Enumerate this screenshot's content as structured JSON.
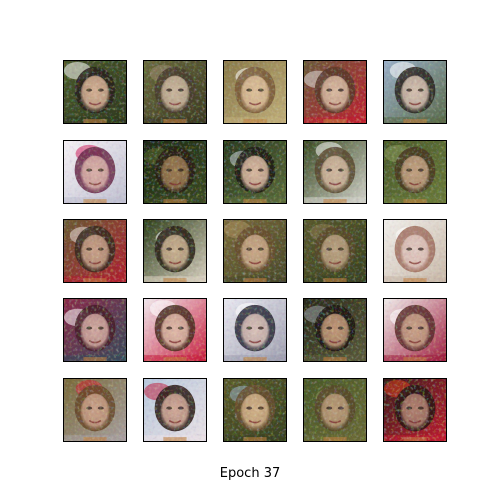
{
  "figure": {
    "caption": "Epoch 37"
  },
  "samples": [
    {
      "bg": "#4b5a2a",
      "bg2": "#2f3a1e",
      "face": "#d4b094",
      "hair": "#2a221c",
      "accent": "#ffffff"
    },
    {
      "bg": "#6a6a3c",
      "bg2": "#3d3a22",
      "face": "#c9b59c",
      "hair": "#4a3e2e",
      "accent": "#9a8a70"
    },
    {
      "bg": "#8a7a4a",
      "bg2": "#bfae7a",
      "face": "#dcbf9a",
      "hair": "#7a5a3a",
      "accent": "#ffffff"
    },
    {
      "bg": "#6a5a3a",
      "bg2": "#c02030",
      "face": "#d8b8a0",
      "hair": "#5a3a2a",
      "accent": "#e0e0e0"
    },
    {
      "bg": "#9ab0c8",
      "bg2": "#5a6a4a",
      "face": "#d4c0b0",
      "hair": "#2a2420",
      "accent": "#ffffff"
    },
    {
      "bg": "#f4f0f4",
      "bg2": "#c0c0d0",
      "face": "#d8b0a8",
      "hair": "#6a2a4a",
      "accent": "#d02060"
    },
    {
      "bg": "#1e2a12",
      "bg2": "#3a4a22",
      "face": "#9a7a52",
      "hair": "#2a1e12",
      "accent": "#5a6a32"
    },
    {
      "bg": "#2a3a1e",
      "bg2": "#5a6a3a",
      "face": "#d8b8a0",
      "hair": "#1e1a14",
      "accent": "#c8d0d8"
    },
    {
      "bg": "#3a4a22",
      "bg2": "#d0d0c8",
      "face": "#d0b8a0",
      "hair": "#5a4a30",
      "accent": "#ffffff"
    },
    {
      "bg": "#4a5a2a",
      "bg2": "#6a7a3a",
      "face": "#c0a080",
      "hair": "#4a3a22",
      "accent": "#8a9a5a"
    },
    {
      "bg": "#6a5a32",
      "bg2": "#b02030",
      "face": "#c8a088",
      "hair": "#3a2a1e",
      "accent": "#e8e0e0"
    },
    {
      "bg": "#2e3e1a",
      "bg2": "#d8d0c0",
      "face": "#c8b090",
      "hair": "#2a2218",
      "accent": "#ffffff"
    },
    {
      "bg": "#7a6a3a",
      "bg2": "#4a4a2a",
      "face": "#c8a888",
      "hair": "#6a5030",
      "accent": "#aa9060"
    },
    {
      "bg": "#5a5a2e",
      "bg2": "#3a4220",
      "face": "#b8a080",
      "hair": "#5a4a2a",
      "accent": "#8a7a50"
    },
    {
      "bg": "#f0eeea",
      "bg2": "#c8b8a8",
      "face": "#e0c8c0",
      "hair": "#a07060",
      "accent": "#ffffff"
    },
    {
      "bg": "#8a2a4a",
      "bg2": "#3a4a5a",
      "face": "#d0a8a0",
      "hair": "#4a1e2a",
      "accent": "#ffffff"
    },
    {
      "bg": "#f0e8ec",
      "bg2": "#c82040",
      "face": "#e0b8a8",
      "hair": "#4a2a1e",
      "accent": "#ffffff"
    },
    {
      "bg": "#e8e8f0",
      "bg2": "#a0a0b0",
      "face": "#d8c0b8",
      "hair": "#2a2a3a",
      "accent": "#ffffff"
    },
    {
      "bg": "#2a2a1a",
      "bg2": "#5a5a3a",
      "face": "#c09878",
      "hair": "#1e1610",
      "accent": "#9aa0a8"
    },
    {
      "bg": "#f0ecea",
      "bg2": "#a02040",
      "face": "#c8a088",
      "hair": "#5a2a2a",
      "accent": "#ffffff"
    },
    {
      "bg": "#7a6a3a",
      "bg2": "#a8a0a0",
      "face": "#c8a088",
      "hair": "#6a4a2a",
      "accent": "#d02030"
    },
    {
      "bg": "#b8c8dc",
      "bg2": "#e8e0e4",
      "face": "#d0a898",
      "hair": "#2a1a14",
      "accent": "#c02040"
    },
    {
      "bg": "#5a5a2a",
      "bg2": "#3a4220",
      "face": "#d0b088",
      "hair": "#6a5030",
      "accent": "#9ab0c8"
    },
    {
      "bg": "#4a5a28",
      "bg2": "#6a6a36",
      "face": "#b89a78",
      "hair": "#5a4a2a",
      "accent": "#8a8a5a"
    },
    {
      "bg": "#3a1e1a",
      "bg2": "#c01a30",
      "face": "#b08070",
      "hair": "#2a1814",
      "accent": "#e04020"
    }
  ]
}
